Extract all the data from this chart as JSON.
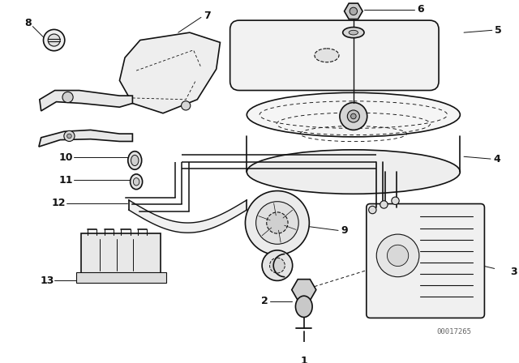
{
  "bg_color": "#ffffff",
  "fig_width": 6.4,
  "fig_height": 4.48,
  "dpi": 100,
  "watermark": "00017265",
  "line_color": "#111111",
  "label_fontsize": 9,
  "label_fontweight": "bold"
}
